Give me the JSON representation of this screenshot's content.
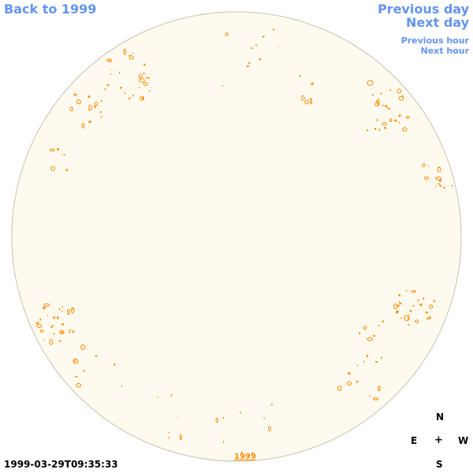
{
  "nav": {
    "back_label": "Back to 1999",
    "previous_day_label": "Previous day",
    "next_day_label": "Next day",
    "previous_hour_label": "Previous hour",
    "next_hour_label": "Next hour"
  },
  "compass": {
    "north": "N",
    "east": "E",
    "center": "+",
    "west": "W",
    "south": "S"
  },
  "timestamp": "1999-03-29T09:35:33",
  "year_marker": "1999",
  "colors": {
    "link": "#6495ed",
    "disk_fill": "#fffaf0",
    "disk_border": "#c8c0b0",
    "feature": "#ff8c00"
  }
}
